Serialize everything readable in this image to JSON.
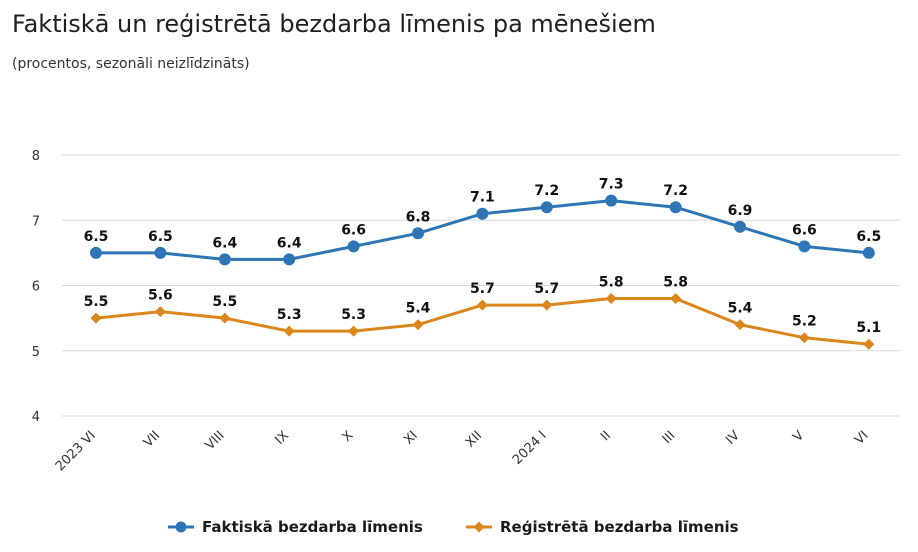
{
  "chart_data": {
    "type": "line",
    "title": "Faktiskā un reģistrētā bezdarba līmenis pa mēnešiem",
    "subtitle": "(procentos, sezonāli neizlīdzināts)",
    "categories": [
      "2023 VI",
      "VII",
      "VIII",
      "IX",
      "X",
      "XI",
      "XII",
      "2024 I",
      "II",
      "III",
      "IV",
      "V",
      "VI"
    ],
    "series": [
      {
        "name": "Faktiskā bezdarba līmenis",
        "color": "#2e75b6",
        "marker": "circle",
        "values": [
          6.5,
          6.5,
          6.4,
          6.4,
          6.6,
          6.8,
          7.1,
          7.2,
          7.3,
          7.2,
          6.9,
          6.6,
          6.5
        ],
        "labels": [
          "6.5",
          "6.5",
          "6.4",
          "6.4",
          "6.6",
          "6.8",
          "7.1",
          "7.2",
          "7.3",
          "7.2",
          "6.9",
          "6.6",
          "6.5"
        ]
      },
      {
        "name": "Reģistrētā bezdarba līmenis",
        "color": "#d9861c",
        "marker": "diamond",
        "values": [
          5.5,
          5.6,
          5.5,
          5.3,
          5.3,
          5.4,
          5.7,
          5.7,
          5.8,
          5.8,
          5.4,
          5.2,
          5.1
        ],
        "labels": [
          "5.5",
          "5.6",
          "5.5",
          "5.3",
          "5.3",
          "5.4",
          "5.7",
          "5.7",
          "5.8",
          "5.8",
          "5.4",
          "5.2",
          "5.1"
        ]
      }
    ],
    "ylim": [
      4,
      8
    ],
    "yticks": [
      "4",
      "5",
      "6",
      "7",
      "8"
    ],
    "xlabel": "",
    "ylabel": "",
    "grid": true,
    "legend_position": "bottom-center"
  }
}
